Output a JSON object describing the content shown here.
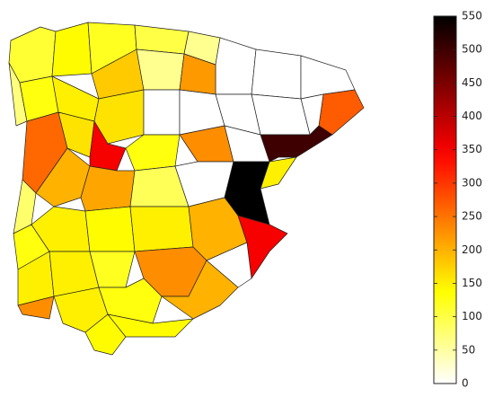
{
  "chart_data": {
    "type": "choropleth",
    "values": [
      110,
      140,
      120,
      100,
      60,
      0,
      0,
      0,
      180,
      60,
      220,
      270,
      0,
      0,
      70,
      130,
      150,
      160,
      0,
      0,
      0,
      500,
      260,
      160,
      350,
      130,
      230,
      0,
      150,
      80,
      200,
      210,
      90,
      0,
      550,
      130,
      150,
      140,
      150,
      200,
      350,
      0,
      150,
      150,
      120,
      230,
      230,
      150,
      130,
      200,
      140,
      140
    ],
    "colormap": "hot-reversed",
    "clim": [
      0,
      550
    ],
    "cticks": [
      0,
      50,
      100,
      150,
      200,
      250,
      300,
      350,
      400,
      450,
      500,
      550
    ]
  }
}
